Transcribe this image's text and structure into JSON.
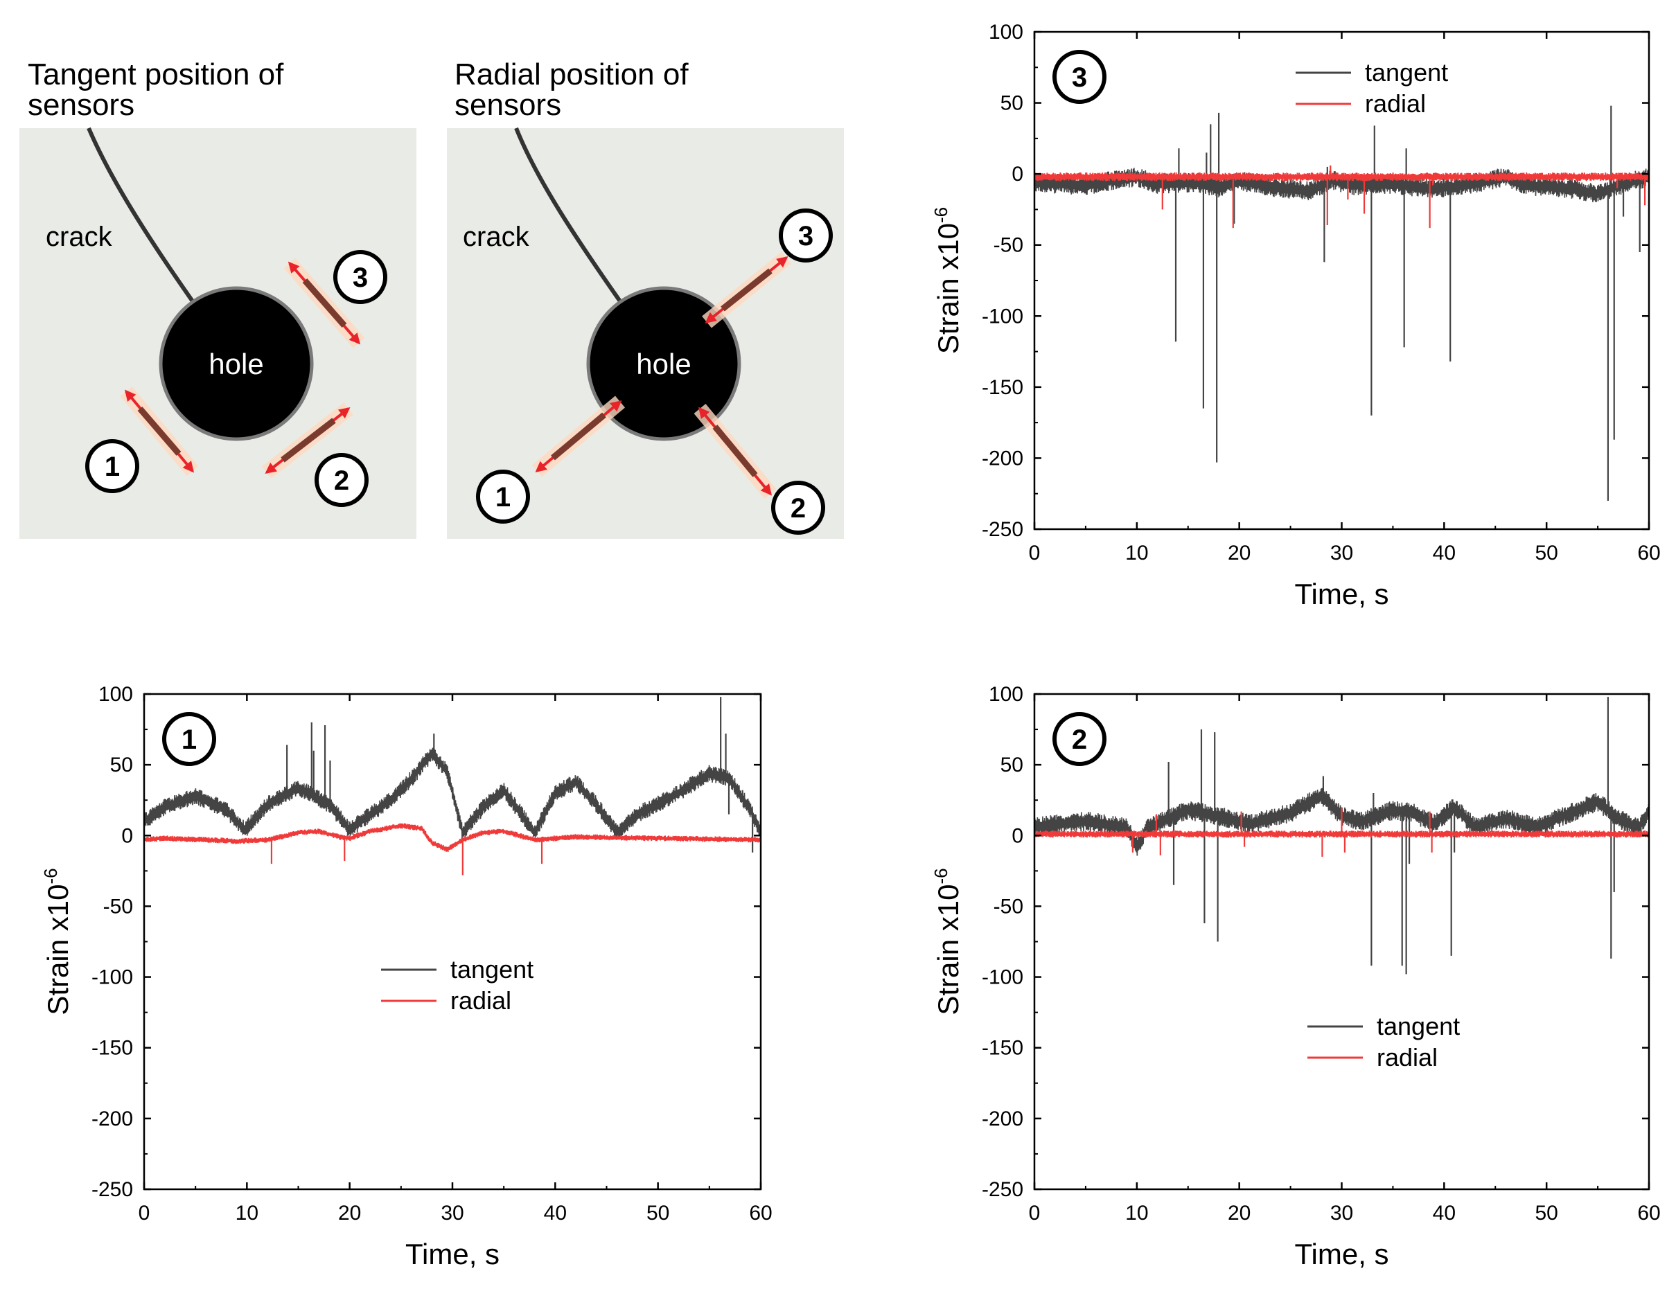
{
  "diagram": {
    "tangent": {
      "title_line1": "Tangent position of",
      "title_line2": "sensors",
      "crack_label": "crack",
      "hole_label": "hole",
      "sensor_labels": [
        "1",
        "2",
        "3"
      ]
    },
    "radial": {
      "title_line1": "Radial position of",
      "title_line2": "sensors",
      "crack_label": "crack",
      "hole_label": "hole",
      "sensor_labels": [
        "1",
        "2",
        "3"
      ]
    }
  },
  "colors": {
    "tangent": "#444444",
    "radial": "#f03a3a",
    "photo_bg": "#e9ebe6",
    "hole": "#000000"
  },
  "chart_data": [
    {
      "id": "sensor3",
      "type": "line",
      "badge": "3",
      "xlabel": "Time, s",
      "ylabel": "Strain x10",
      "ylabel_exp": "-6",
      "xlim": [
        0,
        60
      ],
      "ylim": [
        -250,
        100
      ],
      "xticks": [
        0,
        10,
        20,
        30,
        40,
        50,
        60
      ],
      "yticks": [
        100,
        50,
        0,
        -50,
        -100,
        -150,
        -200,
        -250
      ],
      "legend": {
        "position": "top-center",
        "tangent": "tangent",
        "radial": "radial"
      },
      "series": [
        {
          "name": "tangent",
          "baseline": [
            [
              0,
              -6
            ],
            [
              5,
              -8
            ],
            [
              8,
              -4
            ],
            [
              10,
              -2
            ],
            [
              12,
              -7
            ],
            [
              16,
              -6
            ],
            [
              18,
              -10
            ],
            [
              20,
              -5
            ],
            [
              24,
              -10
            ],
            [
              27,
              -12
            ],
            [
              29,
              -4
            ],
            [
              31,
              -8
            ],
            [
              35,
              -7
            ],
            [
              38,
              -10
            ],
            [
              41,
              -9
            ],
            [
              44,
              -5
            ],
            [
              46,
              -2
            ],
            [
              48,
              -8
            ],
            [
              52,
              -10
            ],
            [
              55,
              -14
            ],
            [
              57,
              -8
            ],
            [
              60,
              -2
            ]
          ],
          "band": 7,
          "spikes": [
            [
              13.8,
              -118
            ],
            [
              14.1,
              18
            ],
            [
              16.5,
              -165
            ],
            [
              16.8,
              15
            ],
            [
              17.2,
              35
            ],
            [
              17.8,
              -203
            ],
            [
              18.0,
              43
            ],
            [
              19.5,
              -35
            ],
            [
              28.3,
              -62
            ],
            [
              28.6,
              5
            ],
            [
              32.9,
              -170
            ],
            [
              33.2,
              34
            ],
            [
              36.1,
              -122
            ],
            [
              36.3,
              18
            ],
            [
              40.6,
              -132
            ],
            [
              41.0,
              -10
            ],
            [
              56.0,
              -230
            ],
            [
              56.3,
              48
            ],
            [
              56.6,
              -187
            ],
            [
              57.5,
              -30
            ],
            [
              59.1,
              -55
            ],
            [
              59.4,
              -10
            ]
          ]
        },
        {
          "name": "radial",
          "baseline": [
            [
              0,
              -2
            ],
            [
              60,
              -2
            ]
          ],
          "band": 3,
          "spikes": [
            [
              12.5,
              -25
            ],
            [
              19.4,
              -38
            ],
            [
              28.6,
              -36
            ],
            [
              28.9,
              6
            ],
            [
              30.6,
              -18
            ],
            [
              32.2,
              -28
            ],
            [
              38.6,
              -38
            ],
            [
              38.9,
              -8
            ],
            [
              56.9,
              -10
            ],
            [
              59.6,
              -22
            ]
          ]
        }
      ]
    },
    {
      "id": "sensor1",
      "type": "line",
      "badge": "1",
      "xlabel": "Time, s",
      "ylabel": "Strain x10",
      "ylabel_exp": "-6",
      "xlim": [
        0,
        60
      ],
      "ylim": [
        -250,
        100
      ],
      "xticks": [
        0,
        10,
        20,
        30,
        40,
        50,
        60
      ],
      "yticks": [
        100,
        50,
        0,
        -50,
        -100,
        -150,
        -200,
        -250
      ],
      "legend": {
        "position": "center",
        "tangent": "tangent",
        "radial": "radial"
      },
      "series": [
        {
          "name": "tangent",
          "baseline": [
            [
              0,
              10
            ],
            [
              2,
              20
            ],
            [
              5,
              28
            ],
            [
              8,
              18
            ],
            [
              9.8,
              4
            ],
            [
              12,
              22
            ],
            [
              15,
              34
            ],
            [
              18,
              22
            ],
            [
              20,
              4
            ],
            [
              22,
              15
            ],
            [
              24,
              25
            ],
            [
              26,
              40
            ],
            [
              28,
              58
            ],
            [
              29.5,
              45
            ],
            [
              31,
              2
            ],
            [
              33,
              20
            ],
            [
              35,
              32
            ],
            [
              37,
              12
            ],
            [
              38,
              2
            ],
            [
              40,
              30
            ],
            [
              42,
              38
            ],
            [
              44,
              22
            ],
            [
              46,
              2
            ],
            [
              48,
              15
            ],
            [
              52,
              30
            ],
            [
              55,
              44
            ],
            [
              57,
              40
            ],
            [
              59,
              18
            ],
            [
              60,
              2
            ]
          ],
          "band": 6,
          "spikes": [
            [
              13.9,
              64
            ],
            [
              16.3,
              80
            ],
            [
              16.5,
              60
            ],
            [
              17.6,
              78
            ],
            [
              18.1,
              53
            ],
            [
              28.2,
              72
            ],
            [
              56.1,
              98
            ],
            [
              56.6,
              72
            ],
            [
              56.9,
              15
            ],
            [
              59.2,
              -12
            ]
          ]
        },
        {
          "name": "radial",
          "baseline": [
            [
              0,
              -3
            ],
            [
              2,
              -2
            ],
            [
              6,
              -3
            ],
            [
              9,
              -4
            ],
            [
              12,
              -3
            ],
            [
              15,
              2
            ],
            [
              17,
              3
            ],
            [
              19,
              -1
            ],
            [
              20,
              -2
            ],
            [
              22,
              3
            ],
            [
              25,
              7
            ],
            [
              27,
              5
            ],
            [
              28,
              -5
            ],
            [
              29.5,
              -10
            ],
            [
              31,
              -3
            ],
            [
              33,
              2
            ],
            [
              35,
              3
            ],
            [
              37,
              -1
            ],
            [
              38,
              -3
            ],
            [
              42,
              -1
            ],
            [
              50,
              -2
            ],
            [
              60,
              -3
            ]
          ],
          "band": 2,
          "spikes": [
            [
              12.4,
              -20
            ],
            [
              19.5,
              -18
            ],
            [
              31.0,
              -28
            ],
            [
              38.7,
              -20
            ]
          ]
        }
      ]
    },
    {
      "id": "sensor2",
      "type": "line",
      "badge": "2",
      "xlabel": "Time, s",
      "ylabel": "Strain x10",
      "ylabel_exp": "-6",
      "xlim": [
        0,
        60
      ],
      "ylim": [
        -250,
        100
      ],
      "xticks": [
        0,
        10,
        20,
        30,
        40,
        50,
        60
      ],
      "yticks": [
        100,
        50,
        0,
        -50,
        -100,
        -150,
        -200,
        -250
      ],
      "legend": {
        "position": "bottom-center",
        "tangent": "tangent",
        "radial": "radial"
      },
      "series": [
        {
          "name": "tangent",
          "baseline": [
            [
              0,
              6
            ],
            [
              5,
              10
            ],
            [
              9,
              6
            ],
            [
              10,
              -8
            ],
            [
              11,
              5
            ],
            [
              15,
              18
            ],
            [
              19,
              12
            ],
            [
              21,
              8
            ],
            [
              25,
              16
            ],
            [
              28,
              28
            ],
            [
              30,
              14
            ],
            [
              32,
              10
            ],
            [
              35,
              18
            ],
            [
              37,
              16
            ],
            [
              39,
              8
            ],
            [
              41,
              20
            ],
            [
              43,
              6
            ],
            [
              46,
              12
            ],
            [
              49,
              6
            ],
            [
              52,
              15
            ],
            [
              55,
              24
            ],
            [
              57,
              12
            ],
            [
              59,
              5
            ],
            [
              60,
              18
            ]
          ],
          "band": 7,
          "spikes": [
            [
              13.1,
              52
            ],
            [
              13.6,
              -35
            ],
            [
              16.3,
              75
            ],
            [
              16.6,
              -62
            ],
            [
              17.6,
              73
            ],
            [
              17.9,
              -75
            ],
            [
              28.2,
              42
            ],
            [
              32.9,
              -92
            ],
            [
              33.1,
              30
            ],
            [
              35.9,
              -92
            ],
            [
              36.3,
              -98
            ],
            [
              36.6,
              -20
            ],
            [
              40.7,
              -85
            ],
            [
              41.0,
              -12
            ],
            [
              56.0,
              98
            ],
            [
              56.3,
              -87
            ],
            [
              56.6,
              -40
            ]
          ]
        },
        {
          "name": "radial",
          "baseline": [
            [
              0,
              1
            ],
            [
              60,
              1
            ]
          ],
          "band": 2.5,
          "spikes": [
            [
              9.6,
              -12
            ],
            [
              11.9,
              15
            ],
            [
              12.3,
              -14
            ],
            [
              20.2,
              17
            ],
            [
              20.5,
              -8
            ],
            [
              28.1,
              -15
            ],
            [
              30.0,
              20
            ],
            [
              30.3,
              -12
            ],
            [
              38.6,
              17
            ],
            [
              38.8,
              -12
            ]
          ]
        }
      ]
    }
  ]
}
